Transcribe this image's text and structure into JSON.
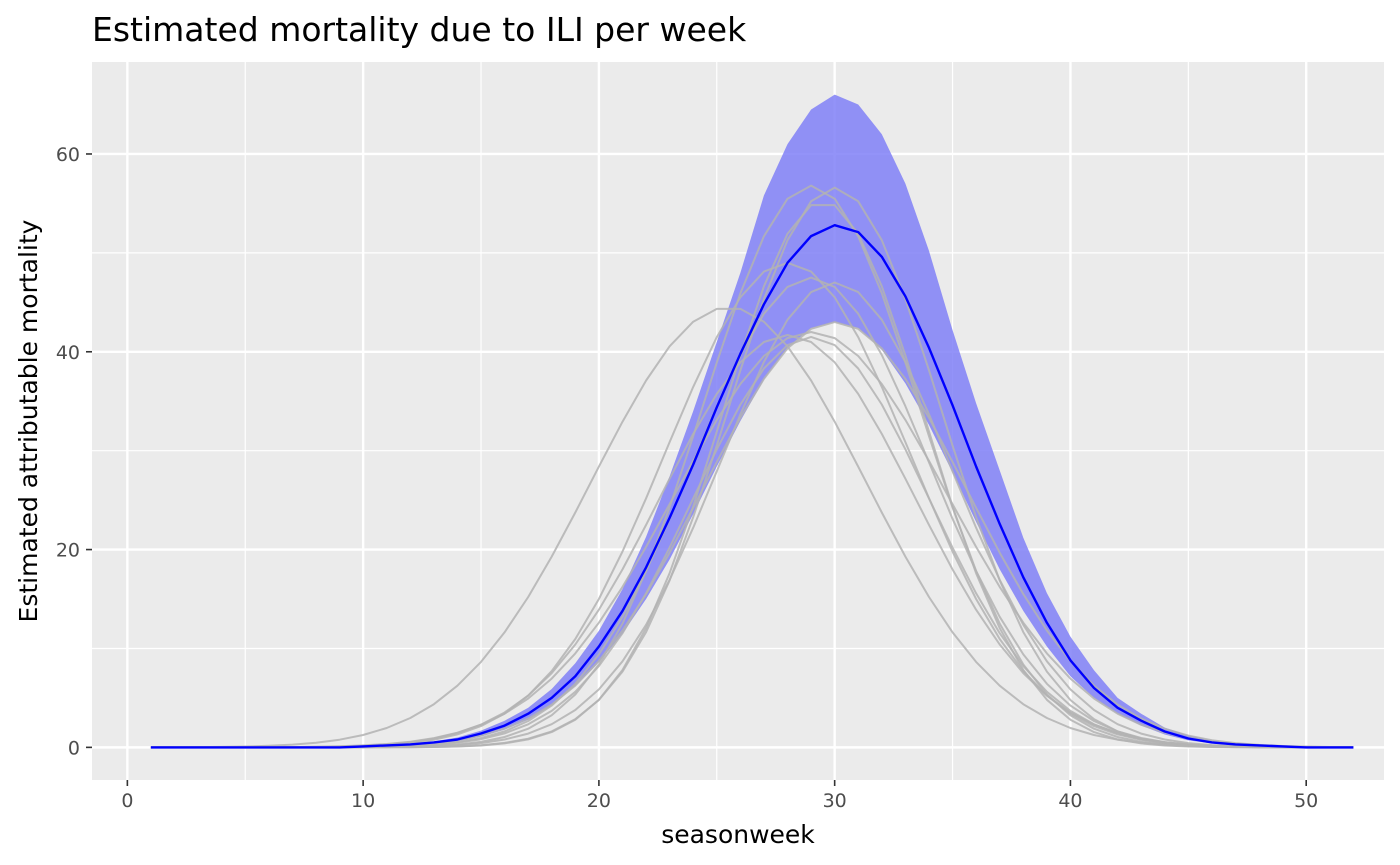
{
  "chart_data": {
    "type": "line",
    "title": "Estimated mortality due to ILI per week",
    "xlabel": "seasonweek",
    "ylabel": "Estimated attributable mortality",
    "xlim": [
      -1.5,
      53.3
    ],
    "ylim": [
      -3.3,
      69.3
    ],
    "xticks": [
      0,
      10,
      20,
      30,
      40,
      50
    ],
    "yticks": [
      0,
      20,
      40,
      60
    ],
    "xtick_labels": [
      "0",
      "10",
      "20",
      "30",
      "40",
      "50"
    ],
    "ytick_labels": [
      "0",
      "20",
      "40",
      "60"
    ],
    "grid": true,
    "colors": {
      "panel": "#ebebeb",
      "grid": "#ffffff",
      "band": "#7b7bf6",
      "mean": "#0000ff",
      "season_lines": "#b3b3b3"
    },
    "season_curves": [
      {
        "peak": 56.8,
        "center": 29.0,
        "sd": 4.6
      },
      {
        "peak": 56.6,
        "center": 30.0,
        "sd": 4.5
      },
      {
        "peak": 55.2,
        "center": 29.5,
        "sd": 4.3
      },
      {
        "peak": 49.0,
        "center": 28.0,
        "sd": 5.2
      },
      {
        "peak": 47.5,
        "center": 29.0,
        "sd": 5.0
      },
      {
        "peak": 47.0,
        "center": 30.0,
        "sd": 4.9
      },
      {
        "peak": 43.0,
        "center": 30.0,
        "sd": 5.6
      },
      {
        "peak": 42.0,
        "center": 29.0,
        "sd": 5.8
      },
      {
        "peak": 41.7,
        "center": 28.0,
        "sd": 5.4
      },
      {
        "peak": 41.5,
        "center": 29.0,
        "sd": 5.0
      },
      {
        "peak": 44.5,
        "center": 25.5,
        "sd": 5.8
      }
    ],
    "series": [
      {
        "name": "mean",
        "x": [
          1,
          2,
          3,
          4,
          5,
          6,
          7,
          8,
          9,
          10,
          11,
          12,
          13,
          14,
          15,
          16,
          17,
          18,
          19,
          20,
          21,
          22,
          23,
          24,
          25,
          26,
          27,
          28,
          29,
          30,
          31,
          32,
          33,
          34,
          35,
          36,
          37,
          38,
          39,
          40,
          41,
          42,
          43,
          44,
          45,
          46,
          47,
          48,
          49,
          50,
          51,
          52
        ],
        "values": [
          0.0,
          0.0,
          0.0,
          0.0,
          0.0,
          0.0,
          0.0,
          0.0,
          0.0,
          0.1,
          0.2,
          0.3,
          0.5,
          0.8,
          1.4,
          2.2,
          3.4,
          5.0,
          7.2,
          10.2,
          13.8,
          18.2,
          23.2,
          28.6,
          34.4,
          39.8,
          44.8,
          49.0,
          51.7,
          52.8,
          52.1,
          49.6,
          45.6,
          40.4,
          34.6,
          28.4,
          22.6,
          17.2,
          12.6,
          8.8,
          6.0,
          4.0,
          2.7,
          1.6,
          0.9,
          0.5,
          0.3,
          0.2,
          0.1,
          0.0,
          0.0,
          0.0
        ]
      },
      {
        "name": "upper",
        "x": [
          1,
          2,
          3,
          4,
          5,
          6,
          7,
          8,
          9,
          10,
          11,
          12,
          13,
          14,
          15,
          16,
          17,
          18,
          19,
          20,
          21,
          22,
          23,
          24,
          25,
          26,
          27,
          28,
          29,
          30,
          31,
          32,
          33,
          34,
          35,
          36,
          37,
          38,
          39,
          40,
          41,
          42,
          43,
          44,
          45,
          46,
          47,
          48,
          49,
          50,
          51,
          52
        ],
        "values": [
          0.0,
          0.0,
          0.0,
          0.0,
          0.0,
          0.0,
          0.0,
          0.0,
          0.0,
          0.1,
          0.2,
          0.4,
          0.6,
          1.0,
          1.7,
          2.7,
          4.0,
          5.9,
          8.5,
          11.8,
          16.0,
          21.3,
          27.4,
          34.0,
          41.0,
          48.0,
          55.8,
          61.0,
          64.5,
          66.0,
          65.0,
          62.0,
          57.0,
          50.2,
          42.2,
          34.8,
          28.0,
          21.2,
          15.6,
          11.2,
          7.8,
          5.0,
          3.4,
          2.0,
          1.2,
          0.7,
          0.4,
          0.2,
          0.1,
          0.0,
          0.0,
          0.0
        ]
      },
      {
        "name": "lower",
        "x": [
          1,
          2,
          3,
          4,
          5,
          6,
          7,
          8,
          9,
          10,
          11,
          12,
          13,
          14,
          15,
          16,
          17,
          18,
          19,
          20,
          21,
          22,
          23,
          24,
          25,
          26,
          27,
          28,
          29,
          30,
          31,
          32,
          33,
          34,
          35,
          36,
          37,
          38,
          39,
          40,
          41,
          42,
          43,
          44,
          45,
          46,
          47,
          48,
          49,
          50,
          51,
          52
        ],
        "values": [
          0.0,
          0.0,
          0.0,
          0.0,
          0.0,
          0.0,
          0.0,
          0.0,
          0.0,
          0.0,
          0.1,
          0.2,
          0.4,
          0.6,
          1.1,
          1.8,
          2.8,
          4.3,
          6.2,
          8.6,
          11.5,
          15.0,
          19.0,
          23.6,
          28.4,
          33.0,
          37.2,
          40.4,
          42.4,
          43.0,
          42.4,
          40.2,
          36.8,
          32.6,
          27.8,
          22.8,
          18.0,
          13.8,
          10.2,
          7.2,
          5.0,
          3.4,
          2.2,
          1.3,
          0.7,
          0.4,
          0.2,
          0.1,
          0.0,
          0.0,
          0.0,
          0.0
        ]
      }
    ]
  }
}
